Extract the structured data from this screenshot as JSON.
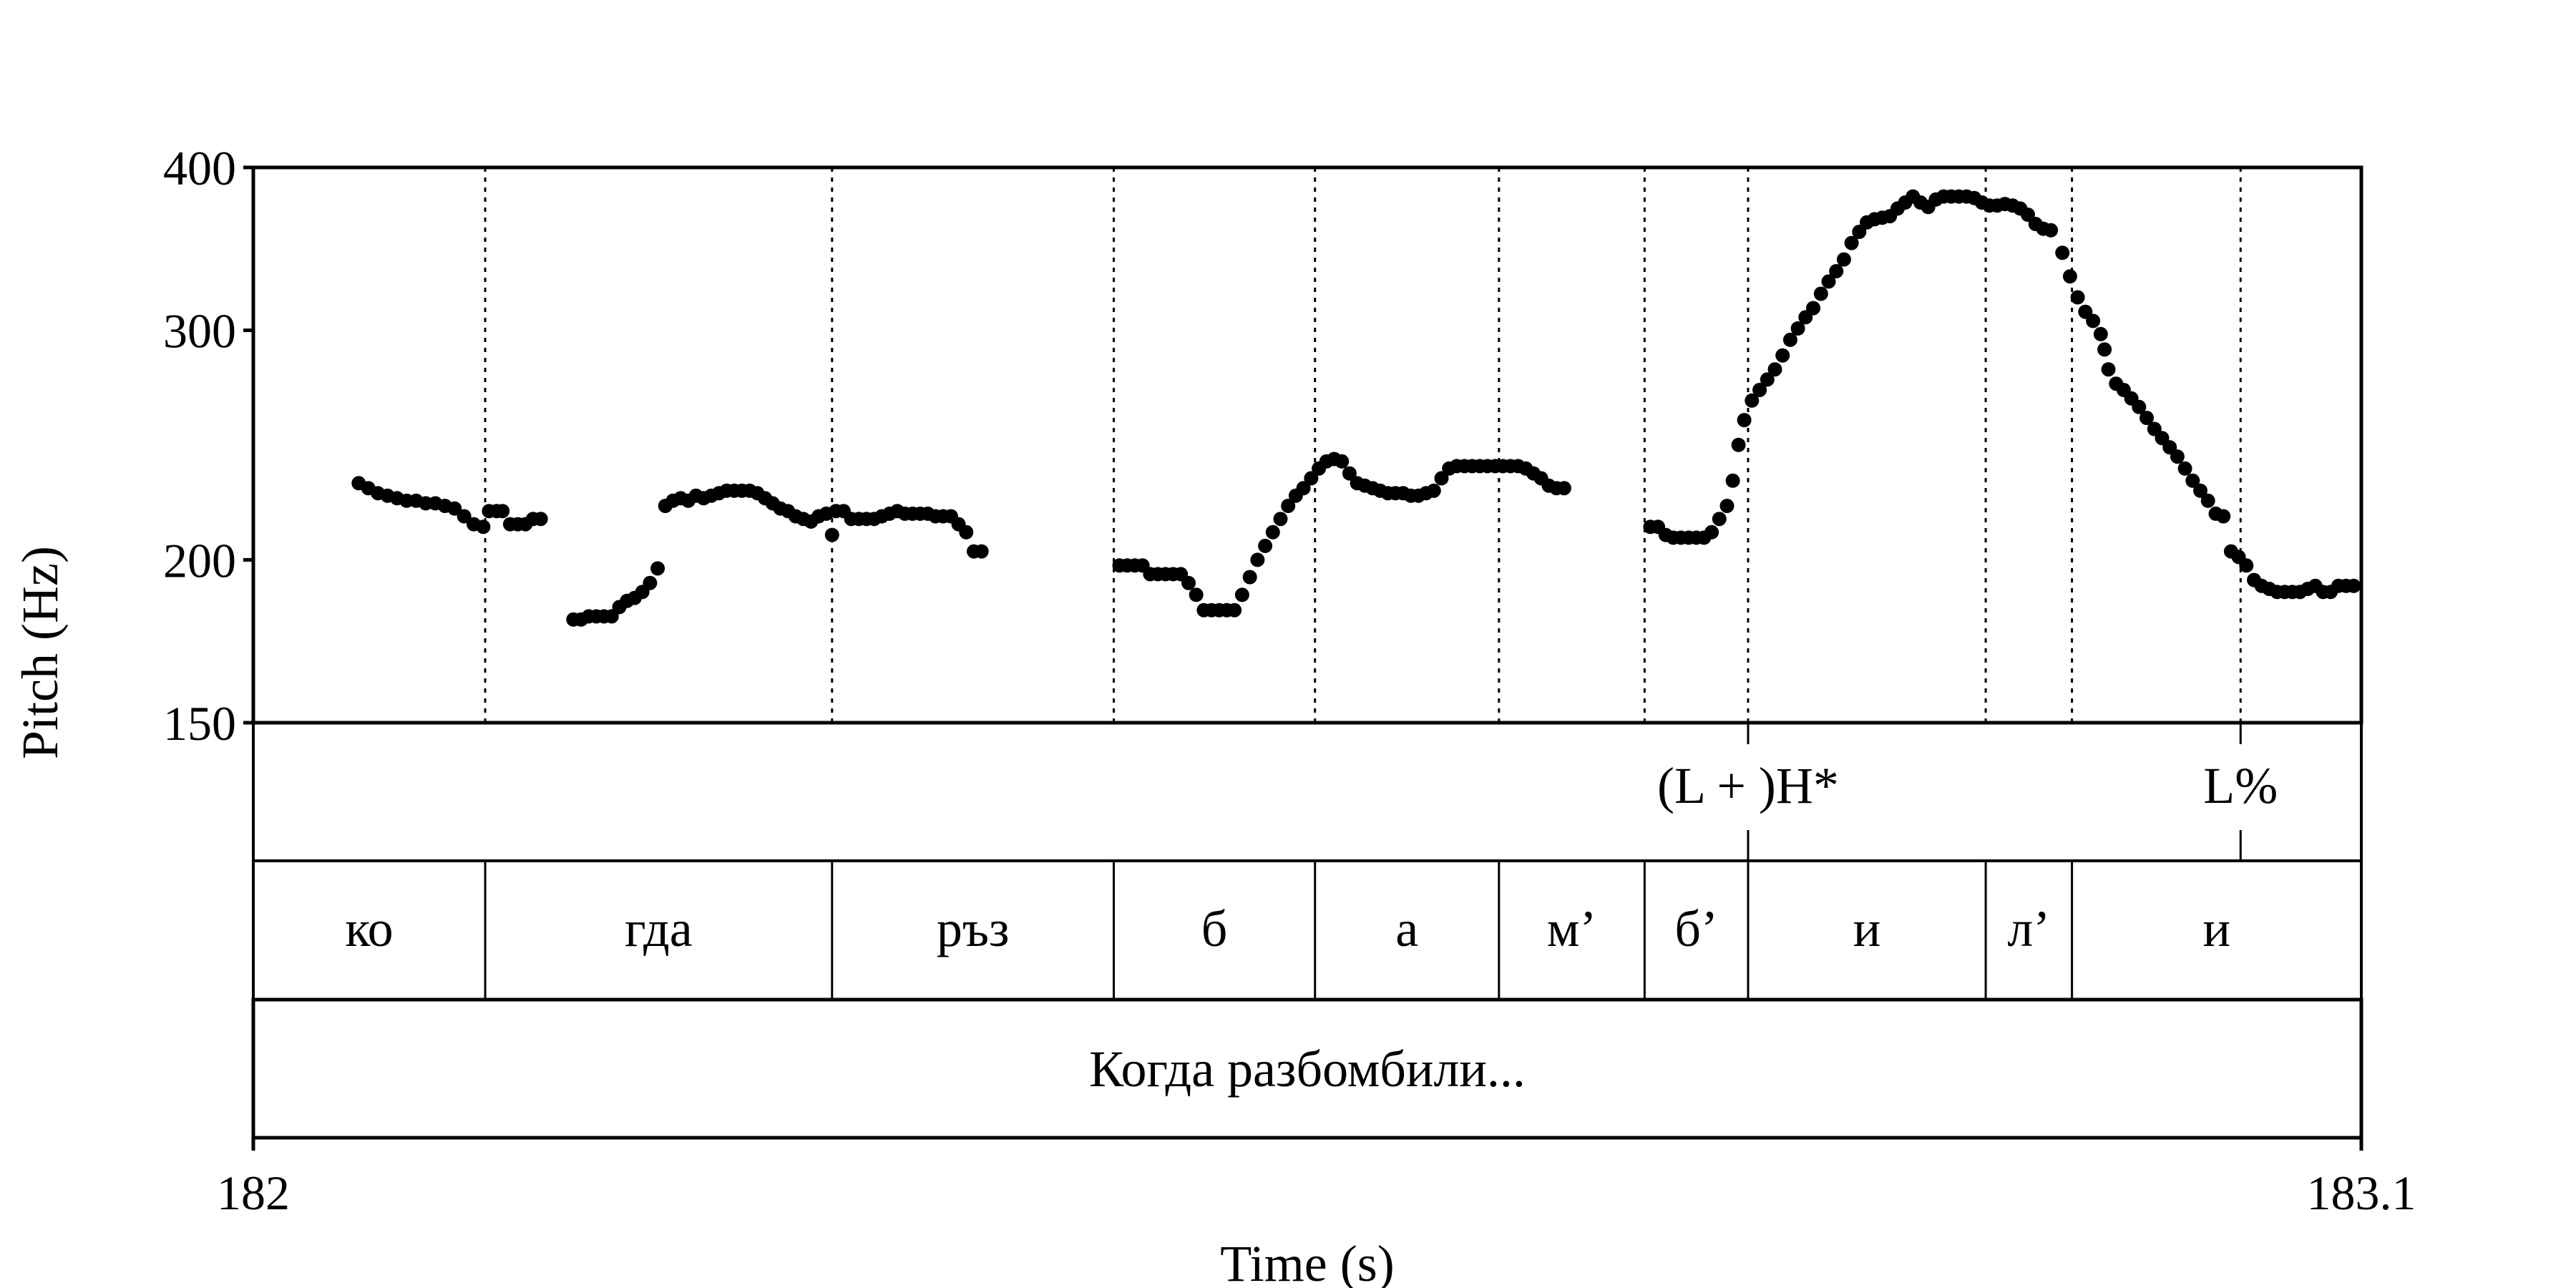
{
  "chart_data": {
    "type": "scatter",
    "xlabel": "Time (s)",
    "ylabel": "Pitch (Hz)",
    "x_ticks": [
      "182",
      "183.1"
    ],
    "xlim": [
      182,
      183.1
    ],
    "y_scale": "log",
    "y_ticks": [
      "150",
      "200",
      "300",
      "400"
    ],
    "ylim": [
      150,
      400
    ],
    "grid": "dotted vertical lines at segment boundaries",
    "segment_boundaries": [
      182.121,
      182.302,
      182.449,
      182.554,
      182.65,
      182.726,
      182.78,
      182.904,
      182.949,
      183.037
    ],
    "segments": [
      {
        "label": "ко",
        "start": 182.0,
        "end": 182.121
      },
      {
        "label": "гда",
        "start": 182.121,
        "end": 182.302
      },
      {
        "label": "ръз",
        "start": 182.302,
        "end": 182.449
      },
      {
        "label": "б",
        "start": 182.449,
        "end": 182.554
      },
      {
        "label": "а",
        "start": 182.554,
        "end": 182.65
      },
      {
        "label": "м’",
        "start": 182.65,
        "end": 182.726
      },
      {
        "label": "б’",
        "start": 182.726,
        "end": 182.78
      },
      {
        "label": "и",
        "start": 182.78,
        "end": 182.904
      },
      {
        "label": "л’",
        "start": 182.904,
        "end": 182.949
      },
      {
        "label": "и",
        "start": 182.949,
        "end": 183.1
      }
    ],
    "tones": [
      {
        "label": "(L + )H*",
        "time": 182.78
      },
      {
        "label": "L%",
        "time": 183.037
      }
    ],
    "utterance": "Когда разбомбили...",
    "series": [
      {
        "points": [
          [
            182.055,
            229
          ],
          [
            182.06,
            227
          ],
          [
            182.065,
            225
          ],
          [
            182.07,
            224
          ],
          [
            182.075,
            223
          ],
          [
            182.08,
            222
          ],
          [
            182.085,
            222
          ],
          [
            182.09,
            221
          ],
          [
            182.095,
            221
          ],
          [
            182.1,
            220
          ],
          [
            182.105,
            219
          ],
          [
            182.11,
            216
          ],
          [
            182.115,
            213
          ],
          [
            182.12,
            212
          ],
          [
            182.123,
            218
          ],
          [
            182.127,
            218
          ],
          [
            182.13,
            218
          ],
          [
            182.134,
            213
          ],
          [
            182.138,
            213
          ],
          [
            182.142,
            213
          ],
          [
            182.146,
            215
          ],
          [
            182.15,
            215
          ],
          [
            182.167,
            180
          ],
          [
            182.171,
            180
          ],
          [
            182.175,
            181
          ],
          [
            182.179,
            181
          ],
          [
            182.183,
            181
          ],
          [
            182.187,
            181
          ],
          [
            182.191,
            184
          ],
          [
            182.195,
            186
          ],
          [
            182.199,
            187
          ],
          [
            182.203,
            189
          ],
          [
            182.207,
            192
          ],
          [
            182.211,
            197
          ],
          [
            182.215,
            220
          ],
          [
            182.219,
            222
          ],
          [
            182.223,
            223
          ],
          [
            182.227,
            222
          ],
          [
            182.231,
            224
          ],
          [
            182.235,
            223
          ],
          [
            182.239,
            224
          ],
          [
            182.243,
            225
          ],
          [
            182.247,
            226
          ],
          [
            182.251,
            226
          ],
          [
            182.255,
            226
          ],
          [
            182.259,
            226
          ],
          [
            182.263,
            225
          ],
          [
            182.267,
            223
          ],
          [
            182.271,
            221
          ],
          [
            182.275,
            219
          ],
          [
            182.279,
            218
          ],
          [
            182.283,
            216
          ],
          [
            182.287,
            215
          ],
          [
            182.291,
            214
          ],
          [
            182.295,
            216
          ],
          [
            182.299,
            217
          ],
          [
            182.302,
            209
          ],
          [
            182.304,
            218
          ],
          [
            182.308,
            218
          ],
          [
            182.312,
            215
          ],
          [
            182.316,
            215
          ],
          [
            182.32,
            215
          ],
          [
            182.324,
            215
          ],
          [
            182.328,
            216
          ],
          [
            182.332,
            217
          ],
          [
            182.336,
            218
          ],
          [
            182.34,
            217
          ],
          [
            182.344,
            217
          ],
          [
            182.348,
            217
          ],
          [
            182.352,
            217
          ],
          [
            182.356,
            216
          ],
          [
            182.36,
            216
          ],
          [
            182.364,
            216
          ],
          [
            182.368,
            213
          ],
          [
            182.372,
            210
          ],
          [
            182.376,
            203
          ],
          [
            182.38,
            203
          ],
          [
            182.452,
            198
          ],
          [
            182.456,
            198
          ],
          [
            182.46,
            198
          ],
          [
            182.464,
            198
          ],
          [
            182.468,
            195
          ],
          [
            182.472,
            195
          ],
          [
            182.476,
            195
          ],
          [
            182.48,
            195
          ],
          [
            182.484,
            195
          ],
          [
            182.488,
            192
          ],
          [
            182.492,
            188
          ],
          [
            182.496,
            183
          ],
          [
            182.5,
            183
          ],
          [
            182.504,
            183
          ],
          [
            182.508,
            183
          ],
          [
            182.512,
            183
          ],
          [
            182.516,
            188
          ],
          [
            182.52,
            194
          ],
          [
            182.524,
            200
          ],
          [
            182.528,
            205
          ],
          [
            182.532,
            210
          ],
          [
            182.536,
            215
          ],
          [
            182.54,
            220
          ],
          [
            182.544,
            224
          ],
          [
            182.548,
            227
          ],
          [
            182.552,
            231
          ],
          [
            182.556,
            235
          ],
          [
            182.56,
            238
          ],
          [
            182.564,
            239
          ],
          [
            182.568,
            238
          ],
          [
            182.572,
            233
          ],
          [
            182.576,
            229
          ],
          [
            182.58,
            228
          ],
          [
            182.584,
            227
          ],
          [
            182.588,
            226
          ],
          [
            182.592,
            225
          ],
          [
            182.596,
            225
          ],
          [
            182.6,
            225
          ],
          [
            182.604,
            224
          ],
          [
            182.608,
            224
          ],
          [
            182.612,
            225
          ],
          [
            182.616,
            226
          ],
          [
            182.62,
            231
          ],
          [
            182.624,
            235
          ],
          [
            182.628,
            236
          ],
          [
            182.632,
            236
          ],
          [
            182.636,
            236
          ],
          [
            182.64,
            236
          ],
          [
            182.644,
            236
          ],
          [
            182.648,
            236
          ],
          [
            182.652,
            236
          ],
          [
            182.656,
            236
          ],
          [
            182.66,
            236
          ],
          [
            182.664,
            235
          ],
          [
            182.668,
            233
          ],
          [
            182.672,
            231
          ],
          [
            182.676,
            228
          ],
          [
            182.68,
            227
          ],
          [
            182.684,
            227
          ],
          [
            182.729,
            212
          ],
          [
            182.733,
            212
          ],
          [
            182.737,
            209
          ],
          [
            182.741,
            208
          ],
          [
            182.745,
            208
          ],
          [
            182.749,
            208
          ],
          [
            182.753,
            208
          ],
          [
            182.757,
            208
          ],
          [
            182.761,
            210
          ],
          [
            182.765,
            215
          ],
          [
            182.769,
            220
          ],
          [
            182.772,
            230
          ],
          [
            182.775,
            245
          ],
          [
            182.778,
            256
          ],
          [
            182.782,
            265
          ],
          [
            182.786,
            270
          ],
          [
            182.79,
            275
          ],
          [
            182.794,
            280
          ],
          [
            182.798,
            287
          ],
          [
            182.802,
            295
          ],
          [
            182.806,
            301
          ],
          [
            182.81,
            307
          ],
          [
            182.814,
            312
          ],
          [
            182.818,
            320
          ],
          [
            182.822,
            327
          ],
          [
            182.826,
            333
          ],
          [
            182.83,
            340
          ],
          [
            182.834,
            350
          ],
          [
            182.838,
            357
          ],
          [
            182.842,
            363
          ],
          [
            182.846,
            365
          ],
          [
            182.85,
            366
          ],
          [
            182.854,
            367
          ],
          [
            182.858,
            372
          ],
          [
            182.862,
            376
          ],
          [
            182.866,
            380
          ],
          [
            182.87,
            376
          ],
          [
            182.874,
            373
          ],
          [
            182.878,
            378
          ],
          [
            182.882,
            380
          ],
          [
            182.886,
            380
          ],
          [
            182.89,
            380
          ],
          [
            182.894,
            380
          ],
          [
            182.898,
            379
          ],
          [
            182.902,
            376
          ],
          [
            182.906,
            374
          ],
          [
            182.91,
            374
          ],
          [
            182.914,
            375
          ],
          [
            182.918,
            374
          ],
          [
            182.922,
            372
          ],
          [
            182.926,
            368
          ],
          [
            182.93,
            362
          ],
          [
            182.934,
            359
          ],
          [
            182.938,
            358
          ],
          [
            182.944,
            344
          ],
          [
            182.948,
            330
          ],
          [
            182.952,
            318
          ],
          [
            182.956,
            310
          ],
          [
            182.96,
            305
          ],
          [
            182.964,
            298
          ],
          [
            182.966,
            290
          ],
          [
            182.968,
            280
          ],
          [
            182.972,
            273
          ],
          [
            182.976,
            270
          ],
          [
            182.98,
            266
          ],
          [
            182.984,
            262
          ],
          [
            182.988,
            257
          ],
          [
            182.992,
            252
          ],
          [
            182.996,
            248
          ],
          [
            183.0,
            244
          ],
          [
            183.004,
            240
          ],
          [
            183.008,
            235
          ],
          [
            183.012,
            230
          ],
          [
            183.016,
            226
          ],
          [
            183.02,
            222
          ],
          [
            183.024,
            217
          ],
          [
            183.028,
            216
          ],
          [
            183.032,
            203
          ],
          [
            183.036,
            201
          ],
          [
            183.04,
            198
          ],
          [
            183.044,
            193
          ],
          [
            183.048,
            191
          ],
          [
            183.052,
            190
          ],
          [
            183.056,
            189
          ],
          [
            183.06,
            189
          ],
          [
            183.064,
            189
          ],
          [
            183.068,
            189
          ],
          [
            183.072,
            190
          ],
          [
            183.076,
            191
          ],
          [
            183.08,
            189
          ],
          [
            183.084,
            189
          ],
          [
            183.088,
            191
          ],
          [
            183.092,
            191
          ],
          [
            183.096,
            191
          ]
        ]
      }
    ]
  }
}
